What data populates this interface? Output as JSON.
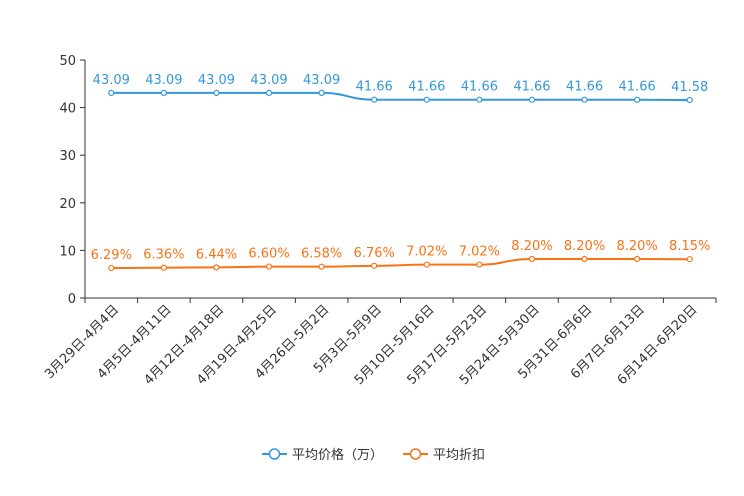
{
  "chart_data": {
    "type": "line",
    "title": "",
    "xlabel": "",
    "ylabel": "",
    "ylim": [
      0,
      50
    ],
    "yticks": [
      "0",
      "10",
      "20",
      "30",
      "40",
      "50"
    ],
    "categories": [
      "3月29日-4月4日",
      "4月5日-4月11日",
      "4月12日-4月18日",
      "4月19日-4月25日",
      "4月26日-5月2日",
      "5月3日-5月9日",
      "5月10日-5月16日",
      "5月17日-5月23日",
      "5月24日-5月30日",
      "5月31日-6月6日",
      "6月7日-6月13日",
      "6月14日-6月20日"
    ],
    "series": [
      {
        "name": "平均价格（万）",
        "color": "#3398DB",
        "values": [
          43.09,
          43.09,
          43.09,
          43.09,
          43.09,
          41.66,
          41.66,
          41.66,
          41.66,
          41.66,
          41.66,
          41.58
        ],
        "labels": [
          "43.09",
          "43.09",
          "43.09",
          "43.09",
          "43.09",
          "41.66",
          "41.66",
          "41.66",
          "41.66",
          "41.66",
          "41.66",
          "41.58"
        ]
      },
      {
        "name": "平均折扣",
        "color": "#F97316",
        "values": [
          6.29,
          6.36,
          6.44,
          6.6,
          6.58,
          6.76,
          7.02,
          7.02,
          8.2,
          8.2,
          8.2,
          8.15
        ],
        "labels": [
          "6.29%",
          "6.36%",
          "6.44%",
          "6.60%",
          "6.58%",
          "6.76%",
          "7.02%",
          "7.02%",
          "8.20%",
          "8.20%",
          "8.20%",
          "8.15%"
        ]
      }
    ],
    "legend": "bottom-center",
    "grid": false
  }
}
